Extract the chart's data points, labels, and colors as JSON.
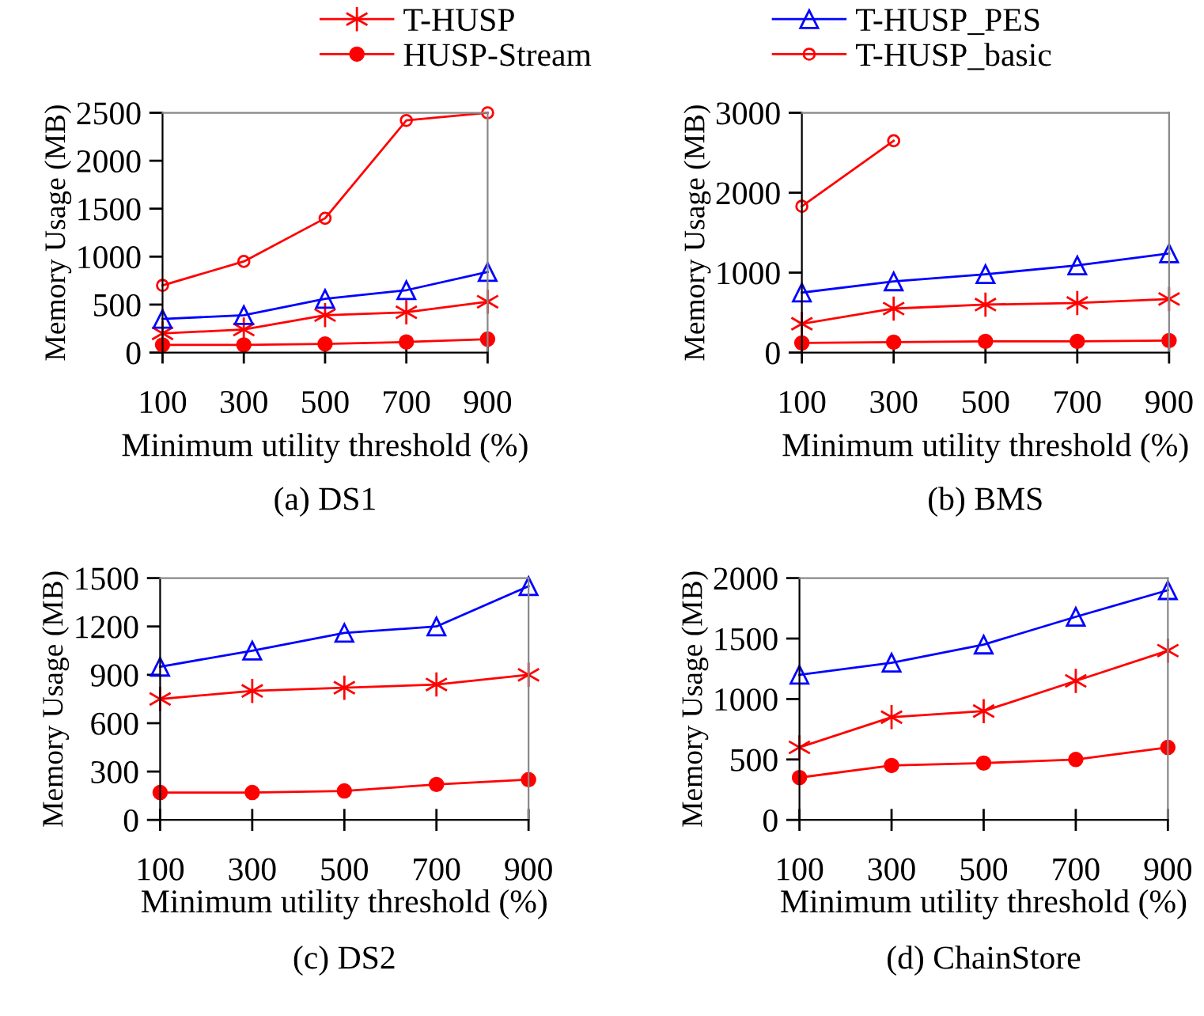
{
  "chart_data": [
    {
      "type": "line",
      "title": "(a) DS1",
      "xlabel": "Minimum utility threshold (%)",
      "ylabel": "Memory Usage (MB)",
      "categories": [
        "100",
        "300",
        "500",
        "700",
        "900"
      ],
      "ylim": [
        0,
        2500
      ],
      "yticks": [
        0,
        500,
        1000,
        1500,
        2000,
        2500
      ],
      "grid": false,
      "legend": "top",
      "series": [
        {
          "name": "T-HUSP",
          "color": "#ff0000",
          "marker": "cross",
          "values": [
            200,
            240,
            390,
            420,
            530
          ]
        },
        {
          "name": "HUSP-Stream",
          "color": "#ff0000",
          "marker": "circle",
          "values": [
            80,
            80,
            90,
            110,
            140
          ]
        },
        {
          "name": "T-HUSP_PES",
          "color": "#0000ff",
          "marker": "triangle",
          "values": [
            350,
            390,
            560,
            650,
            840
          ]
        },
        {
          "name": "T-HUSP_basic",
          "color": "#ff0000",
          "marker": "circle",
          "values": [
            700,
            950,
            1400,
            2420,
            2500
          ]
        }
      ]
    },
    {
      "type": "line",
      "title": "(b) BMS",
      "xlabel": "Minimum utility threshold (%)",
      "ylabel": "Memory Usage (MB)",
      "categories": [
        "100",
        "300",
        "500",
        "700",
        "900"
      ],
      "ylim": [
        0,
        3000
      ],
      "yticks": [
        0,
        1000,
        2000,
        3000
      ],
      "grid": false,
      "series": [
        {
          "color": "#ff0000",
          "marker": "cross",
          "values": [
            360,
            550,
            600,
            620,
            670
          ]
        },
        {
          "color": "#ff0000",
          "marker": "circle",
          "values": [
            120,
            130,
            140,
            140,
            150
          ]
        },
        {
          "color": "#0000ff",
          "marker": "triangle",
          "values": [
            750,
            890,
            980,
            1090,
            1240
          ]
        },
        {
          "color": "#ff0000",
          "marker": "circle",
          "values": [
            1830,
            2650,
            null,
            null,
            null
          ]
        }
      ]
    },
    {
      "type": "line",
      "title": "(c) DS2",
      "xlabel": "Minimum utility threshold (%)",
      "ylabel": "Memory Usage (MB)",
      "categories": [
        "100",
        "300",
        "500",
        "700",
        "900"
      ],
      "ylim": [
        0,
        1500
      ],
      "yticks": [
        0,
        300,
        600,
        900,
        1200,
        1500
      ],
      "grid": false,
      "series": [
        {
          "color": "#ff0000",
          "marker": "cross",
          "values": [
            750,
            800,
            820,
            840,
            900
          ]
        },
        {
          "color": "#ff0000",
          "marker": "circle",
          "values": [
            170,
            170,
            180,
            220,
            250
          ]
        },
        {
          "color": "#0000ff",
          "marker": "triangle",
          "values": [
            950,
            1050,
            1160,
            1200,
            1450
          ]
        }
      ]
    },
    {
      "type": "line",
      "title": "(d) ChainStore",
      "xlabel": "Minimum utility threshold (%)",
      "ylabel": "Memory Usage (MB)",
      "categories": [
        "100",
        "300",
        "500",
        "700",
        "900"
      ],
      "ylim": [
        0,
        2000
      ],
      "yticks": [
        0,
        500,
        1000,
        1500,
        2000
      ],
      "grid": false,
      "series": [
        {
          "color": "#ff0000",
          "marker": "cross",
          "values": [
            600,
            850,
            900,
            1150,
            1400
          ]
        },
        {
          "color": "#ff0000",
          "marker": "circle",
          "values": [
            350,
            450,
            470,
            500,
            600
          ]
        },
        {
          "color": "#0000ff",
          "marker": "triangle",
          "values": [
            1200,
            1300,
            1450,
            1680,
            1900
          ]
        }
      ]
    }
  ]
}
